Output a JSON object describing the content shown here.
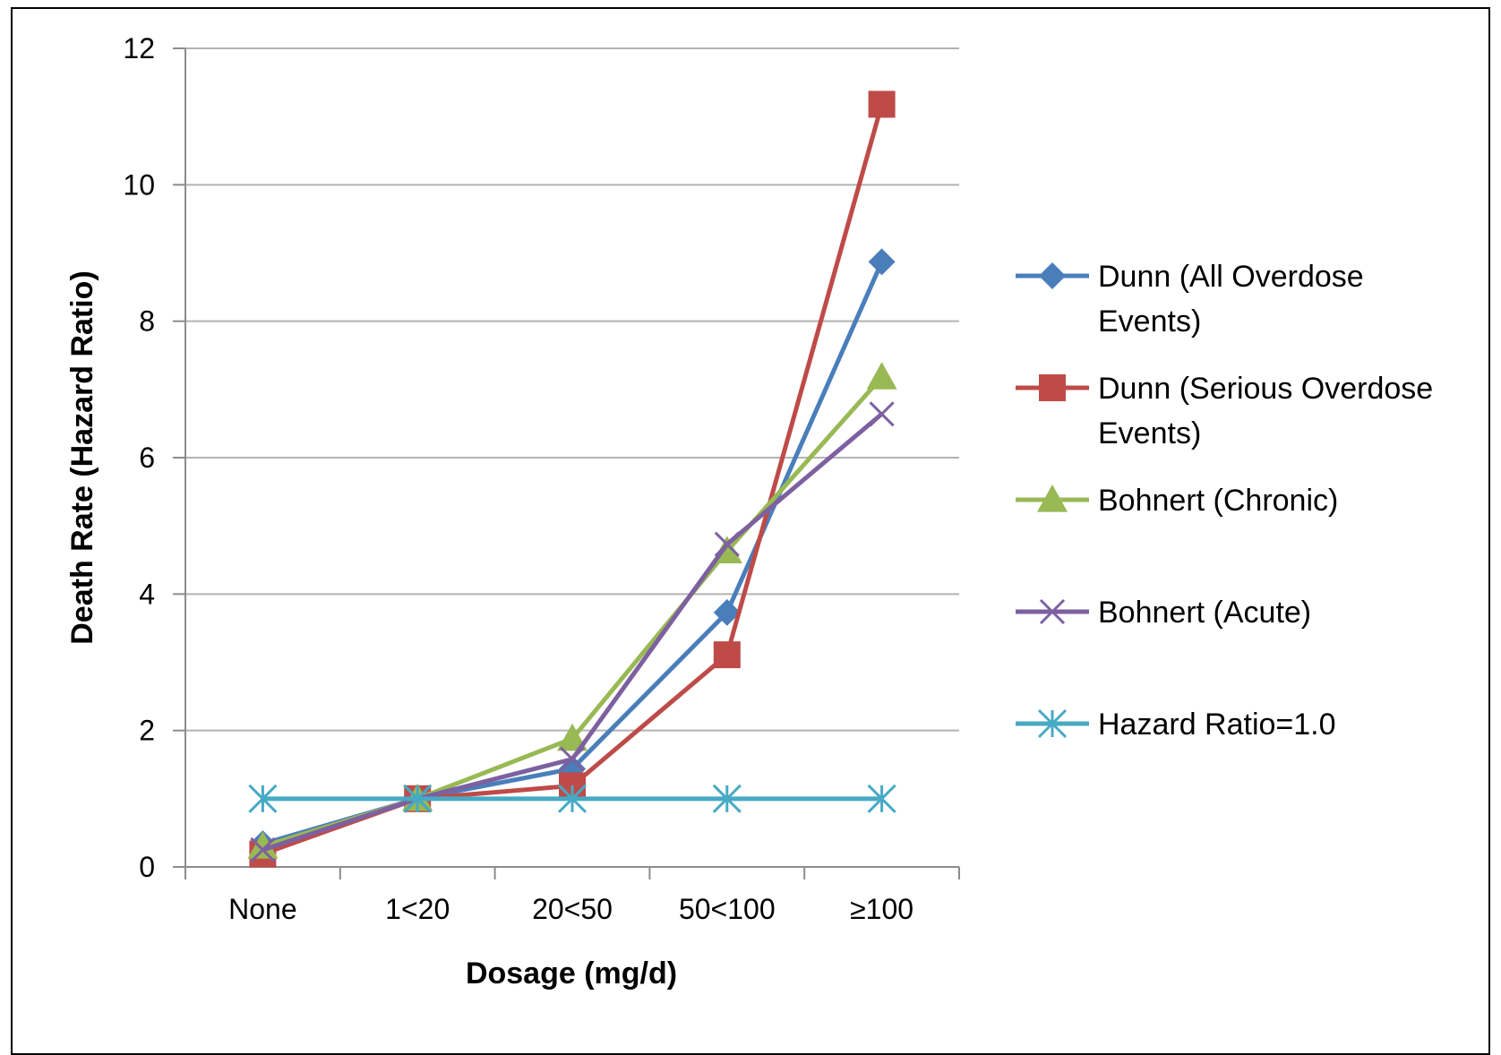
{
  "chart_data": {
    "type": "line",
    "categories": [
      "None",
      "1<20",
      "20<50",
      "50<100",
      "≥100"
    ],
    "xlabel": "Dosage (mg/d)",
    "ylabel": "Death Rate (Hazard Ratio)",
    "ylim": [
      0,
      12
    ],
    "yticks": [
      "0",
      "2",
      "4",
      "6",
      "8",
      "10",
      "12"
    ],
    "grid": true,
    "legend_position": "right",
    "series": [
      {
        "name": "Dunn (All Overdose Events)",
        "legend_lines": [
          "Dunn (All Overdose",
          "Events)"
        ],
        "color": "#4A7EBB",
        "marker": "diamond",
        "values": [
          0.34,
          1.0,
          1.44,
          3.73,
          8.87
        ]
      },
      {
        "name": "Dunn (Serious Overdose Events)",
        "legend_lines": [
          "Dunn (Serious Overdose",
          "Events)"
        ],
        "color": "#BE4B48",
        "marker": "square",
        "values": [
          0.19,
          1.0,
          1.19,
          3.11,
          11.18
        ]
      },
      {
        "name": "Bohnert (Chronic)",
        "legend_lines": [
          "Bohnert (Chronic)"
        ],
        "color": "#98B954",
        "marker": "triangle",
        "values": [
          0.3,
          1.0,
          1.88,
          4.63,
          7.18
        ]
      },
      {
        "name": "Bohnert (Acute)",
        "legend_lines": [
          "Bohnert (Acute)"
        ],
        "color": "#7D60A0",
        "marker": "x",
        "values": [
          0.25,
          1.0,
          1.58,
          4.73,
          6.64
        ]
      },
      {
        "name": "Hazard Ratio=1.0",
        "legend_lines": [
          "Hazard Ratio=1.0"
        ],
        "color": "#46AAC5",
        "marker": "star",
        "values": [
          1.0,
          1.0,
          1.0,
          1.0,
          1.0
        ]
      }
    ]
  }
}
